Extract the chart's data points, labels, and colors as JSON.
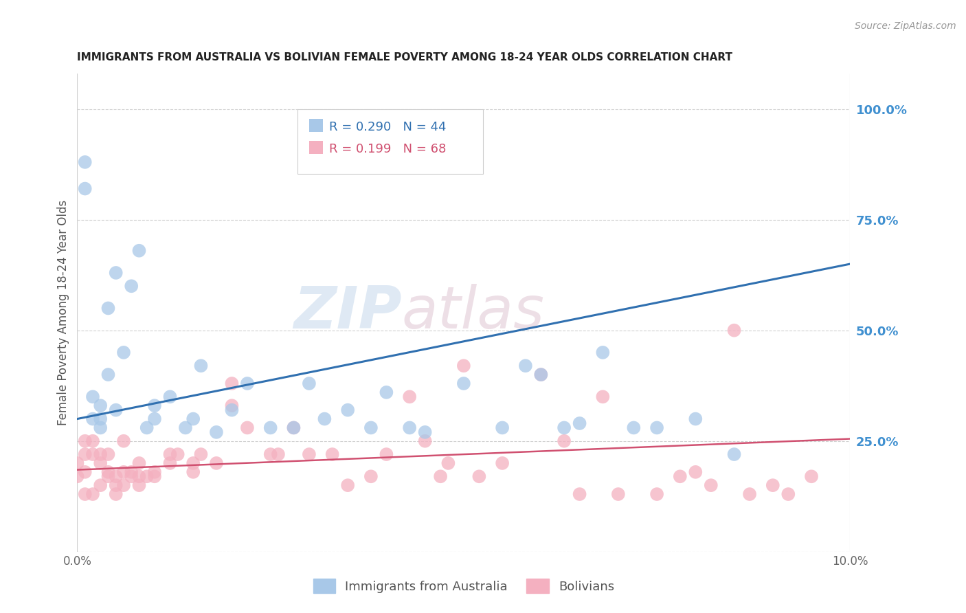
{
  "title": "IMMIGRANTS FROM AUSTRALIA VS BOLIVIAN FEMALE POVERTY AMONG 18-24 YEAR OLDS CORRELATION CHART",
  "source": "Source: ZipAtlas.com",
  "ylabel": "Female Poverty Among 18-24 Year Olds",
  "watermark_line1": "ZIP",
  "watermark_line2": "atlas",
  "legend_label1": "Immigrants from Australia",
  "legend_label2": "Bolivians",
  "R1": 0.29,
  "N1": 44,
  "R2": 0.199,
  "N2": 68,
  "blue_color": "#a8c8e8",
  "pink_color": "#f4b0c0",
  "blue_line_color": "#3070b0",
  "pink_line_color": "#d05070",
  "background_color": "#ffffff",
  "grid_color": "#d0d0d0",
  "right_axis_color": "#4090d0",
  "title_color": "#222222",
  "source_color": "#999999",
  "blue_scatter_x": [
    0.001,
    0.001,
    0.002,
    0.002,
    0.003,
    0.003,
    0.003,
    0.004,
    0.004,
    0.005,
    0.005,
    0.006,
    0.007,
    0.008,
    0.009,
    0.01,
    0.01,
    0.012,
    0.014,
    0.015,
    0.016,
    0.018,
    0.02,
    0.022,
    0.025,
    0.028,
    0.03,
    0.032,
    0.035,
    0.038,
    0.04,
    0.043,
    0.045,
    0.05,
    0.055,
    0.058,
    0.06,
    0.063,
    0.065,
    0.068,
    0.072,
    0.075,
    0.08,
    0.085
  ],
  "blue_scatter_y": [
    0.82,
    0.88,
    0.3,
    0.35,
    0.28,
    0.3,
    0.33,
    0.4,
    0.55,
    0.32,
    0.63,
    0.45,
    0.6,
    0.68,
    0.28,
    0.3,
    0.33,
    0.35,
    0.28,
    0.3,
    0.42,
    0.27,
    0.32,
    0.38,
    0.28,
    0.28,
    0.38,
    0.3,
    0.32,
    0.28,
    0.36,
    0.28,
    0.27,
    0.38,
    0.28,
    0.42,
    0.4,
    0.28,
    0.29,
    0.45,
    0.28,
    0.28,
    0.3,
    0.22
  ],
  "pink_scatter_x": [
    0.001,
    0.001,
    0.001,
    0.002,
    0.002,
    0.003,
    0.003,
    0.004,
    0.004,
    0.005,
    0.005,
    0.006,
    0.006,
    0.007,
    0.008,
    0.008,
    0.009,
    0.01,
    0.012,
    0.013,
    0.015,
    0.016,
    0.018,
    0.02,
    0.022,
    0.025,
    0.026,
    0.028,
    0.03,
    0.033,
    0.035,
    0.038,
    0.04,
    0.043,
    0.045,
    0.047,
    0.048,
    0.05,
    0.052,
    0.055,
    0.06,
    0.063,
    0.065,
    0.068,
    0.07,
    0.075,
    0.078,
    0.08,
    0.082,
    0.085,
    0.087,
    0.09,
    0.092,
    0.095,
    0.0,
    0.0,
    0.001,
    0.002,
    0.003,
    0.004,
    0.005,
    0.006,
    0.007,
    0.008,
    0.01,
    0.012,
    0.015,
    0.02
  ],
  "pink_scatter_y": [
    0.25,
    0.22,
    0.18,
    0.22,
    0.25,
    0.2,
    0.22,
    0.22,
    0.18,
    0.17,
    0.15,
    0.18,
    0.25,
    0.18,
    0.17,
    0.2,
    0.17,
    0.17,
    0.2,
    0.22,
    0.2,
    0.22,
    0.2,
    0.38,
    0.28,
    0.22,
    0.22,
    0.28,
    0.22,
    0.22,
    0.15,
    0.17,
    0.22,
    0.35,
    0.25,
    0.17,
    0.2,
    0.42,
    0.17,
    0.2,
    0.4,
    0.25,
    0.13,
    0.35,
    0.13,
    0.13,
    0.17,
    0.18,
    0.15,
    0.5,
    0.13,
    0.15,
    0.13,
    0.17,
    0.2,
    0.17,
    0.13,
    0.13,
    0.15,
    0.17,
    0.13,
    0.15,
    0.17,
    0.15,
    0.18,
    0.22,
    0.18,
    0.33
  ],
  "xlim": [
    0.0,
    0.1
  ],
  "ylim_min": 0.0,
  "ylim_max": 1.08,
  "yticks": [
    0.0,
    0.25,
    0.5,
    0.75,
    1.0
  ],
  "ytick_labels": [
    "",
    "25.0%",
    "50.0%",
    "75.0%",
    "100.0%"
  ],
  "xticks": [
    0.0,
    0.1
  ],
  "xtick_labels": [
    "0.0%",
    "10.0%"
  ],
  "blue_line_x0": 0.0,
  "blue_line_y0": 0.3,
  "blue_line_x1": 0.1,
  "blue_line_y1": 0.65,
  "pink_line_x0": 0.0,
  "pink_line_y0": 0.185,
  "pink_line_x1": 0.1,
  "pink_line_y1": 0.255
}
